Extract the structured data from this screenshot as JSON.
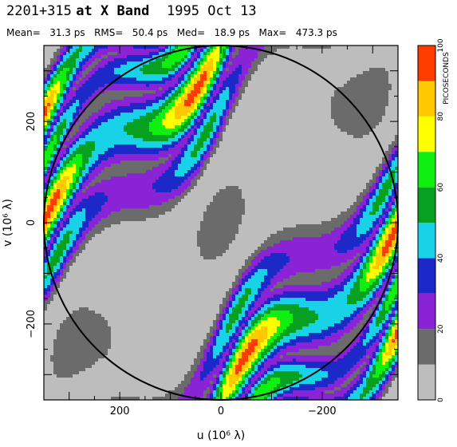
{
  "title": {
    "source": "2201+315",
    "band": "at X Band",
    "date": "1995 Oct 13"
  },
  "stats": [
    {
      "label": "Mean=",
      "value": "31.3 ps"
    },
    {
      "label": "RMS=",
      "value": "50.4 ps"
    },
    {
      "label": "Med=",
      "value": "18.9 ps"
    },
    {
      "label": "Max=",
      "value": "473.3 ps"
    }
  ],
  "chart_data": {
    "type": "heatmap",
    "xlabel": "u  (10⁶ λ)",
    "ylabel": "v  (10⁶ λ)",
    "xlim": [
      350,
      -350
    ],
    "ylim": [
      -350,
      350
    ],
    "x_ticks": [
      200,
      0,
      -200
    ],
    "y_ticks": [
      200,
      0,
      -200
    ],
    "x_tick_labels": [
      "200",
      "0",
      "−200"
    ],
    "y_tick_labels": [
      "200",
      "0",
      "−200"
    ],
    "circle_radius": 350,
    "colorbar": {
      "label": "PICOSECONDS",
      "range": [
        0,
        100
      ],
      "ticks": [
        "0",
        "20",
        "40",
        "60",
        "80",
        "100"
      ],
      "levels": [
        {
          "from": 0,
          "to": 10,
          "color": "#bdbdbd"
        },
        {
          "from": 10,
          "to": 20,
          "color": "#6b6b6b"
        },
        {
          "from": 20,
          "to": 30,
          "color": "#8a23d6"
        },
        {
          "from": 30,
          "to": 40,
          "color": "#1c28c8"
        },
        {
          "from": 40,
          "to": 50,
          "color": "#18d2e8"
        },
        {
          "from": 50,
          "to": 60,
          "color": "#08a020"
        },
        {
          "from": 60,
          "to": 70,
          "color": "#10f010"
        },
        {
          "from": 70,
          "to": 80,
          "color": "#ffff00"
        },
        {
          "from": 80,
          "to": 90,
          "color": "#ffc800"
        },
        {
          "from": 90,
          "to": 100,
          "color": "#ff3c00"
        }
      ]
    },
    "field": {
      "model": "diagonal fringe pattern of picosecond delay over the uv plane",
      "bands": [
        {
          "offset": 0,
          "peak": 12,
          "width": 140
        },
        {
          "offset": 170,
          "peak": 55,
          "width": 40
        },
        {
          "offset": -170,
          "peak": 55,
          "width": 40
        },
        {
          "offset": 255,
          "peak": 95,
          "width": 45
        },
        {
          "offset": -255,
          "peak": 95,
          "width": 45
        },
        {
          "offset": 340,
          "peak": 70,
          "width": 30
        },
        {
          "offset": -340,
          "peak": 70,
          "width": 30
        },
        {
          "offset": 410,
          "peak": 100,
          "width": 40
        },
        {
          "offset": -410,
          "peak": 100,
          "width": 40
        }
      ]
    }
  }
}
